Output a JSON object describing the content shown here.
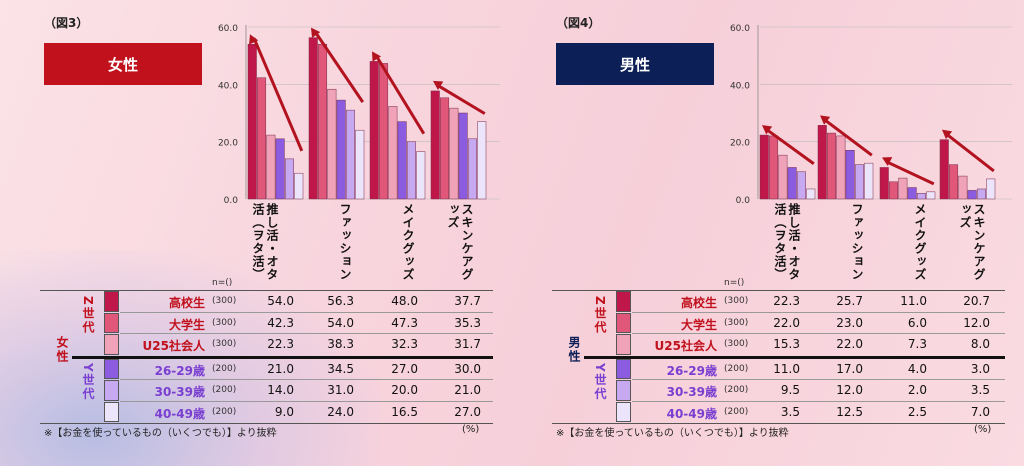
{
  "categories": [
    "推し活・オタ活（ヲタ活）",
    "ファッション",
    "メイクグッズ",
    "スキンケアグッズ"
  ],
  "category_display": [
    "推し活・オタ活（ヲタ活）",
    "ファッション",
    "メイクグッズ",
    "スキンケアグッズ"
  ],
  "y_ticks": [
    "60.0",
    "40.0",
    "20.0",
    "0.0"
  ],
  "n_header": "n=()",
  "unit": "(%)",
  "footnote": "※【お金を使っているもの（いくつでも）】より抜粋",
  "generations": {
    "z": "Z世代",
    "y": "Y世代"
  },
  "colors": [
    "#c0174a",
    "#e0577a",
    "#f0a3b8",
    "#8b5be0",
    "#c6a9f0",
    "#ece4fb"
  ],
  "arrow_color": "#b3121f",
  "groups": [
    {
      "label": "高校生",
      "n": "(300)"
    },
    {
      "label": "大学生",
      "n": "(300)"
    },
    {
      "label": "U25社会人",
      "n": "(300)"
    },
    {
      "label": "26-29歳",
      "n": "(200)"
    },
    {
      "label": "30-39歳",
      "n": "(200)"
    },
    {
      "label": "40-49歳",
      "n": "(200)"
    }
  ],
  "chart_data": [
    {
      "type": "bar",
      "fig": "（図3）",
      "title": "女性",
      "badge_color": "#c0111c",
      "gender_label": "女性",
      "categories": [
        "推し活・オタ活（ヲタ活）",
        "ファッション",
        "メイクグッズ",
        "スキンケアグッズ"
      ],
      "ylim": [
        0,
        60
      ],
      "series": [
        {
          "name": "高校生",
          "values": [
            54.0,
            56.3,
            48.0,
            37.7
          ]
        },
        {
          "name": "大学生",
          "values": [
            42.3,
            54.0,
            47.3,
            35.3
          ]
        },
        {
          "name": "U25社会人",
          "values": [
            22.3,
            38.3,
            32.3,
            31.7
          ]
        },
        {
          "name": "26-29歳",
          "values": [
            21.0,
            34.5,
            27.0,
            30.0
          ]
        },
        {
          "name": "30-39歳",
          "values": [
            14.0,
            31.0,
            20.0,
            21.0
          ]
        },
        {
          "name": "40-49歳",
          "values": [
            9.0,
            24.0,
            16.5,
            27.0
          ]
        }
      ],
      "rows_text": [
        [
          "54.0",
          "56.3",
          "48.0",
          "37.7"
        ],
        [
          "42.3",
          "54.0",
          "47.3",
          "35.3"
        ],
        [
          "22.3",
          "38.3",
          "32.3",
          "31.7"
        ],
        [
          "21.0",
          "34.5",
          "27.0",
          "30.0"
        ],
        [
          "14.0",
          "31.0",
          "20.0",
          "21.0"
        ],
        [
          "9.0",
          "24.0",
          "16.5",
          "27.0"
        ]
      ]
    },
    {
      "type": "bar",
      "fig": "（図4）",
      "title": "男性",
      "badge_color": "#0d1f57",
      "gender_label": "男性",
      "categories": [
        "推し活・オタ活（ヲタ活）",
        "ファッション",
        "メイクグッズ",
        "スキンケアグッズ"
      ],
      "ylim": [
        0,
        60
      ],
      "series": [
        {
          "name": "高校生",
          "values": [
            22.3,
            25.7,
            11.0,
            20.7
          ]
        },
        {
          "name": "大学生",
          "values": [
            22.0,
            23.0,
            6.0,
            12.0
          ]
        },
        {
          "name": "U25社会人",
          "values": [
            15.3,
            22.0,
            7.3,
            8.0
          ]
        },
        {
          "name": "26-29歳",
          "values": [
            11.0,
            17.0,
            4.0,
            3.0
          ]
        },
        {
          "name": "30-39歳",
          "values": [
            9.5,
            12.0,
            2.0,
            3.5
          ]
        },
        {
          "name": "40-49歳",
          "values": [
            3.5,
            12.5,
            2.5,
            7.0
          ]
        }
      ],
      "rows_text": [
        [
          "22.3",
          "25.7",
          "11.0",
          "20.7"
        ],
        [
          "22.0",
          "23.0",
          "6.0",
          "12.0"
        ],
        [
          "15.3",
          "22.0",
          "7.3",
          "8.0"
        ],
        [
          "11.0",
          "17.0",
          "4.0",
          "3.0"
        ],
        [
          "9.5",
          "12.0",
          "2.0",
          "3.5"
        ],
        [
          "3.5",
          "12.5",
          "2.5",
          "7.0"
        ]
      ]
    }
  ]
}
